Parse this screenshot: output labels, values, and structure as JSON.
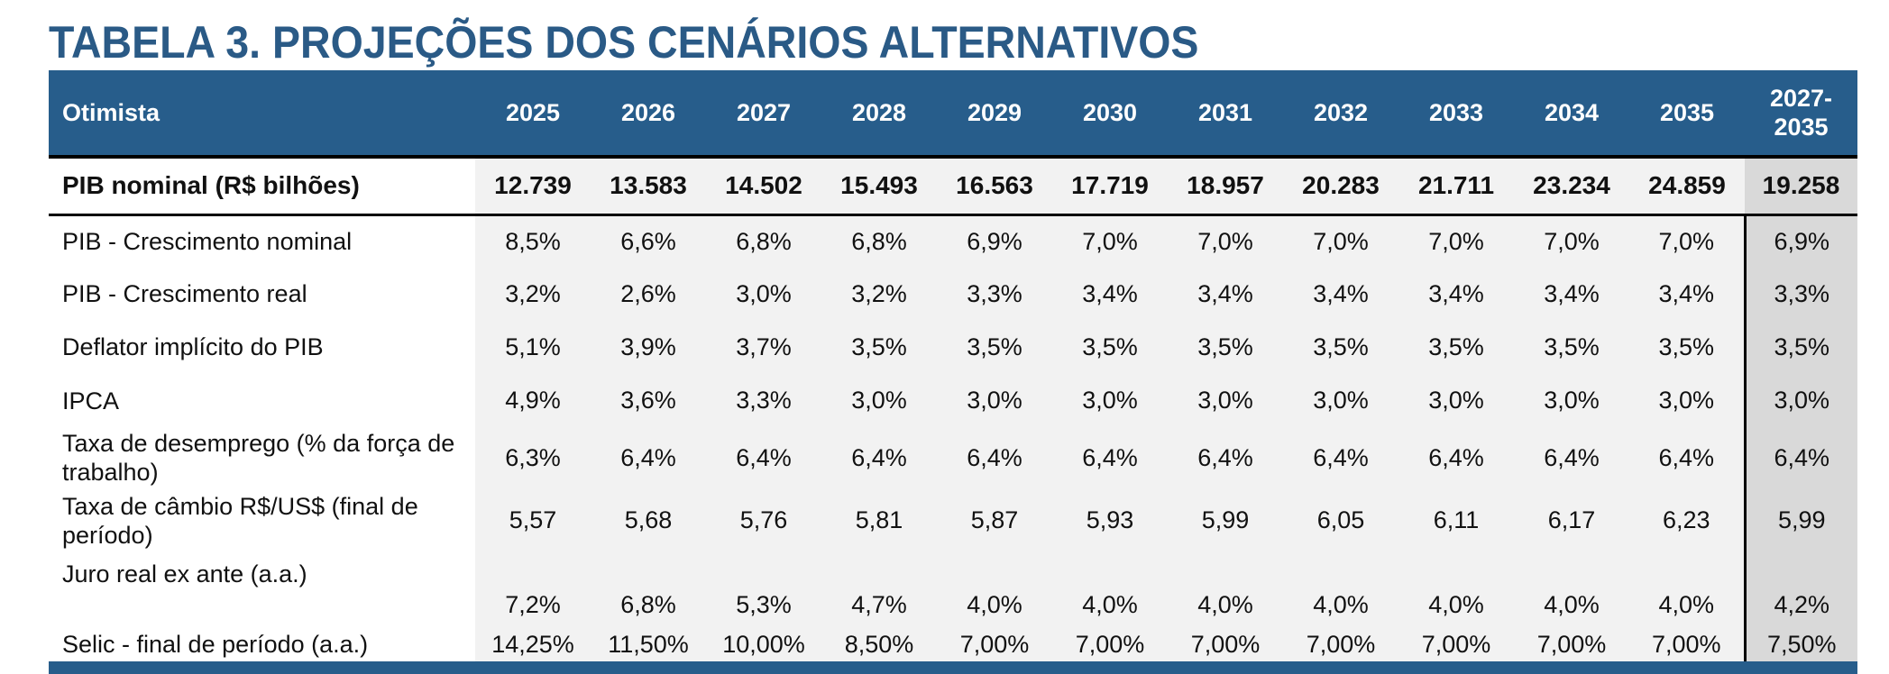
{
  "title": "TABELA 3. PROJEÇÕES DOS CENÁRIOS ALTERNATIVOS",
  "colors": {
    "title": "#2a5a86",
    "header_bg": "#275d8b",
    "cell_bg": "#f2f2f2",
    "avg_bg": "#d9d9d9"
  },
  "table": {
    "scenario_label": "Otimista",
    "years": [
      "2025",
      "2026",
      "2027",
      "2028",
      "2029",
      "2030",
      "2031",
      "2032",
      "2033",
      "2034",
      "2035"
    ],
    "avg_header": "2027-\n2035",
    "rows": [
      {
        "label": "PIB nominal (R$ bilhões)",
        "values": [
          "12.739",
          "13.583",
          "14.502",
          "15.493",
          "16.563",
          "17.719",
          "18.957",
          "20.283",
          "21.711",
          "23.234",
          "24.859"
        ],
        "avg": "19.258"
      },
      {
        "label": "PIB - Crescimento nominal",
        "values": [
          "8,5%",
          "6,6%",
          "6,8%",
          "6,8%",
          "6,9%",
          "7,0%",
          "7,0%",
          "7,0%",
          "7,0%",
          "7,0%",
          "7,0%"
        ],
        "avg": "6,9%"
      },
      {
        "label": "PIB - Crescimento real",
        "values": [
          "3,2%",
          "2,6%",
          "3,0%",
          "3,2%",
          "3,3%",
          "3,4%",
          "3,4%",
          "3,4%",
          "3,4%",
          "3,4%",
          "3,4%"
        ],
        "avg": "3,3%"
      },
      {
        "label": "Deflator implícito do PIB",
        "values": [
          "5,1%",
          "3,9%",
          "3,7%",
          "3,5%",
          "3,5%",
          "3,5%",
          "3,5%",
          "3,5%",
          "3,5%",
          "3,5%",
          "3,5%"
        ],
        "avg": "3,5%"
      },
      {
        "label": "IPCA",
        "values": [
          "4,9%",
          "3,6%",
          "3,3%",
          "3,0%",
          "3,0%",
          "3,0%",
          "3,0%",
          "3,0%",
          "3,0%",
          "3,0%",
          "3,0%"
        ],
        "avg": "3,0%"
      },
      {
        "label": "Taxa de desemprego (% da força de trabalho)",
        "values": [
          "6,3%",
          "6,4%",
          "6,4%",
          "6,4%",
          "6,4%",
          "6,4%",
          "6,4%",
          "6,4%",
          "6,4%",
          "6,4%",
          "6,4%"
        ],
        "avg": "6,4%"
      },
      {
        "label": "Taxa de câmbio R$/US$ (final de período)",
        "values": [
          "5,57",
          "5,68",
          "5,76",
          "5,81",
          "5,87",
          "5,93",
          "5,99",
          "6,05",
          "6,11",
          "6,17",
          "6,23"
        ],
        "avg": "5,99"
      },
      {
        "label": "Juro real ex ante (a.a.)",
        "values": [
          "7,2%",
          "6,8%",
          "5,3%",
          "4,7%",
          "4,0%",
          "4,0%",
          "4,0%",
          "4,0%",
          "4,0%",
          "4,0%",
          "4,0%"
        ],
        "avg": "4,2%"
      },
      {
        "label": "Selic - final de período (a.a.)",
        "values": [
          "14,25%",
          "11,50%",
          "10,00%",
          "8,50%",
          "7,00%",
          "7,00%",
          "7,00%",
          "7,00%",
          "7,00%",
          "7,00%",
          "7,00%"
        ],
        "avg": "7,50%"
      }
    ]
  }
}
